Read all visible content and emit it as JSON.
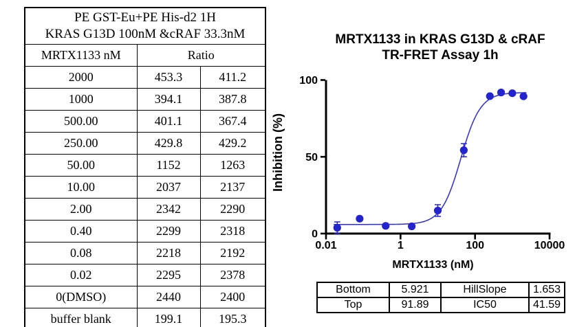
{
  "left_table": {
    "header_line1": "PE GST-Eu+PE His-d2 1H",
    "header_line2": "KRAS G13D 100nM &cRAF 33.3nM",
    "conc_header": "MRTX1133 nM",
    "ratio_header": "Ratio",
    "rows": [
      [
        "2000",
        "453.3",
        "411.2"
      ],
      [
        "1000",
        "394.1",
        "387.8"
      ],
      [
        "500.00",
        "401.1",
        "367.4"
      ],
      [
        "250.00",
        "429.8",
        "429.2"
      ],
      [
        "50.00",
        "1152",
        "1263"
      ],
      [
        "10.00",
        "2037",
        "2137"
      ],
      [
        "2.00",
        "2342",
        "2290"
      ],
      [
        "0.40",
        "2299",
        "2318"
      ],
      [
        "0.08",
        "2218",
        "2192"
      ],
      [
        "0.02",
        "2295",
        "2378"
      ],
      [
        "0(DMSO)",
        "2440",
        "2400"
      ],
      [
        "buffer blank",
        "199.1",
        "195.3"
      ]
    ]
  },
  "chart": {
    "title_line1": "MRTX1133 in KRAS G13D & cRAF",
    "title_line2": "TR-FRET Assay 1h"
  },
  "chart_data": {
    "type": "scatter",
    "title": "MRTX1133 in KRAS G13D & cRAF TR-FRET Assay 1h",
    "xlabel": "MRTX1133 (nM)",
    "ylabel": "Inhibition (%)",
    "x_scale": "log",
    "grid": false,
    "legend": "none",
    "xlim": [
      0.01,
      10000
    ],
    "ylim": [
      0,
      100
    ],
    "x_ticks": [
      0.01,
      1,
      100,
      10000
    ],
    "x_tick_labels": [
      "0.01",
      "1",
      "100",
      "10000"
    ],
    "y_ticks": [
      0,
      50,
      100
    ],
    "axis_color": "#000000",
    "series": [
      {
        "name": "MRTX1133",
        "marker_color": "#2424CE",
        "line_color": "#3838CC",
        "curve_x_range": [
          0.016,
          2400
        ],
        "points": [
          {
            "x": 0.02,
            "y": 3.8,
            "err": 3.8
          },
          {
            "x": 0.08,
            "y": 9.7,
            "err": 0.5
          },
          {
            "x": 0.4,
            "y": 5.0,
            "err": 0.8
          },
          {
            "x": 2,
            "y": 4.7,
            "err": 0.6
          },
          {
            "x": 10,
            "y": 15.0,
            "err": 3.8
          },
          {
            "x": 50,
            "y": 54.3,
            "err": 4.3
          },
          {
            "x": 250,
            "y": 89.5,
            "err": 0.4
          },
          {
            "x": 500,
            "y": 91.9,
            "err": 0.9
          },
          {
            "x": 1000,
            "y": 91.4,
            "err": 0.5
          },
          {
            "x": 2000,
            "y": 89.4,
            "err": 0.6
          }
        ],
        "fit": {
          "model": "4PL",
          "bottom": 5.921,
          "top": 91.89,
          "ic50": 41.59,
          "hillslope": 1.653
        }
      }
    ]
  },
  "fit_table": {
    "rows": [
      [
        "Bottom",
        "5.921",
        "HillSlope",
        "1.653"
      ],
      [
        "Top",
        "91.89",
        "IC50",
        "41.59"
      ]
    ]
  }
}
